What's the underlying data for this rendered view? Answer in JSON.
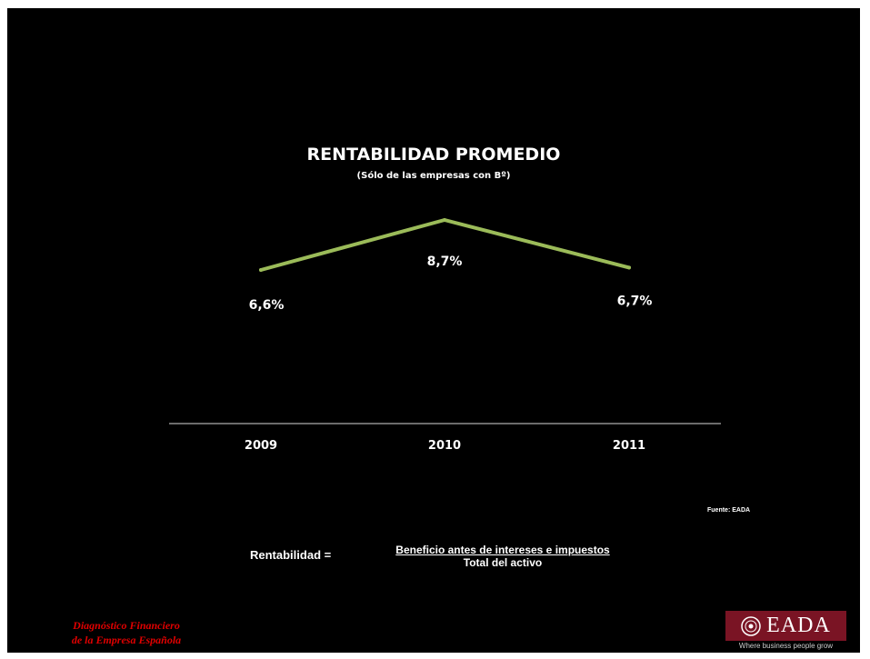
{
  "slide": {
    "title": "RENTABILIDAD PROMEDIO",
    "subtitle": "(Sólo de las empresas  con Bº)",
    "source": "Fuente: EADA",
    "formula": {
      "lhs": "Rentabilidad  =",
      "numerator": "Beneficio antes de intereses e impuestos",
      "denominator": "Total del activo"
    },
    "footer_brand_line1": "Diagnóstico  Financiero",
    "footer_brand_line2": "de la Empresa Española",
    "logo_text": "EADA",
    "logo_tagline": "Where business people grow"
  },
  "chart_data": {
    "type": "line",
    "categories": [
      "2009",
      "2010",
      "2011"
    ],
    "series": [
      {
        "values": [
          6.6,
          8.7,
          6.7
        ],
        "labels": [
          "6,6%",
          "8,7%",
          "6,7%"
        ]
      }
    ],
    "title": "RENTABILIDAD PROMEDIO",
    "subtitle": "(Sólo de las empresas  con Bº)",
    "ylim": [
      0,
      12
    ],
    "grid": false,
    "colors": {
      "line": "#9bbb59",
      "axis": "#d9d9d9",
      "text": "#ffffff"
    }
  }
}
